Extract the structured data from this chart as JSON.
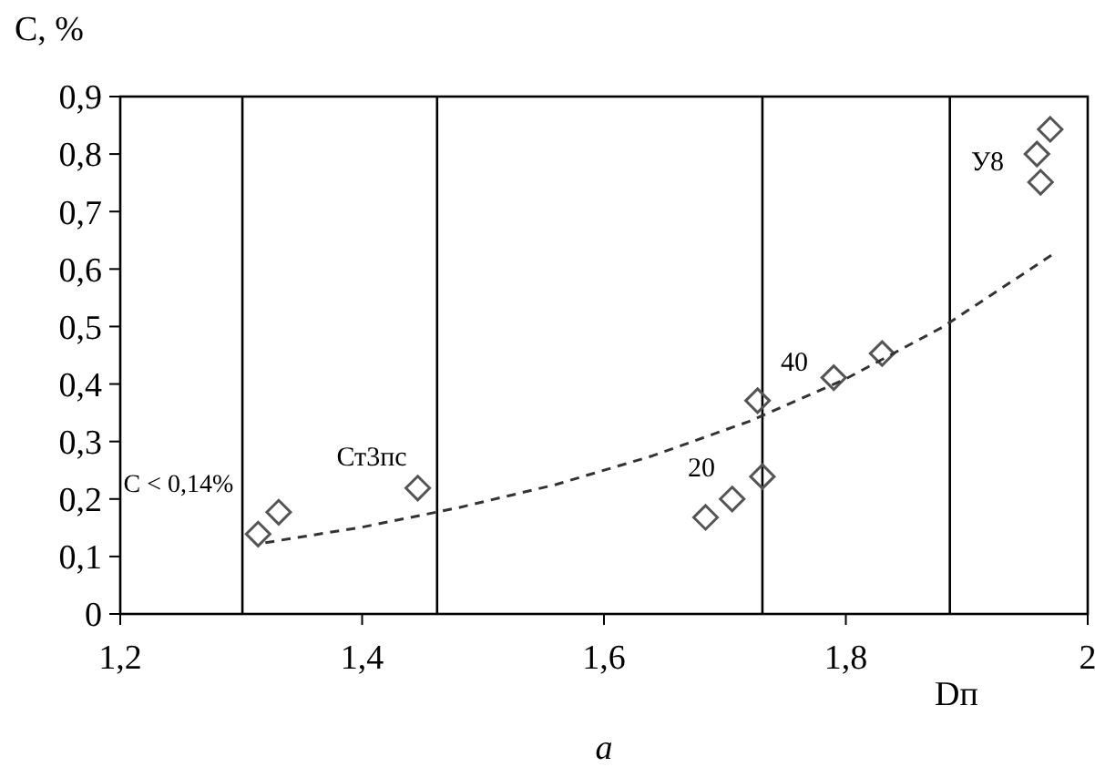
{
  "chart_data": {
    "type": "scatter",
    "xlabel": "Dп",
    "ylabel": "C, %",
    "xlim": [
      1.2,
      2
    ],
    "ylim": [
      0,
      0.9
    ],
    "xticks": [
      {
        "value": 1.2,
        "label": "1,2"
      },
      {
        "value": 1.4,
        "label": "1,4"
      },
      {
        "value": 1.6,
        "label": "1,6"
      },
      {
        "value": 1.8,
        "label": "1,8"
      },
      2
    ],
    "yticks": [
      0,
      {
        "value": 0.1,
        "label": "0,1"
      },
      {
        "value": 0.2,
        "label": "0,2"
      },
      {
        "value": 0.3,
        "label": "0,3"
      },
      {
        "value": 0.4,
        "label": "0,4"
      },
      {
        "value": 0.5,
        "label": "0,5"
      },
      {
        "value": 0.6,
        "label": "0,6"
      },
      {
        "value": 0.7,
        "label": "0,7"
      },
      {
        "value": 0.8,
        "label": "0,8"
      },
      {
        "value": 0.9,
        "label": "0,9"
      }
    ],
    "grid": false,
    "marker": "diamond",
    "series": [
      {
        "color": "#555555",
        "x": [
          1.314,
          1.331,
          1.446,
          1.684,
          1.706,
          1.731,
          1.727,
          1.79,
          1.83,
          1.969,
          1.958,
          1.961
        ],
        "values": [
          0.139,
          0.177,
          0.219,
          0.168,
          0.2,
          0.239,
          0.371,
          0.411,
          0.453,
          0.843,
          0.8,
          0.751
        ]
      },
      {
        "type": "line",
        "color": "#333333",
        "line_style": "dashed",
        "marker": "none",
        "x": [
          1.32,
          1.4,
          1.48,
          1.56,
          1.64,
          1.72,
          1.8,
          1.88,
          1.97
        ],
        "values": [
          0.124,
          0.151,
          0.185,
          0.225,
          0.275,
          0.335,
          0.409,
          0.499,
          0.624
        ]
      }
    ],
    "ref_lines": [
      {
        "axis": "x",
        "value": 1.301,
        "color": "#000000"
      },
      {
        "axis": "x",
        "value": 1.462,
        "color": "#000000"
      },
      {
        "axis": "x",
        "value": 1.731,
        "color": "#000000"
      },
      {
        "axis": "x",
        "value": 1.886,
        "color": "#000000"
      }
    ],
    "annotations": [
      "C < 0,14%",
      "Ст3пс",
      "20",
      "40",
      "У8",
      "а"
    ]
  }
}
